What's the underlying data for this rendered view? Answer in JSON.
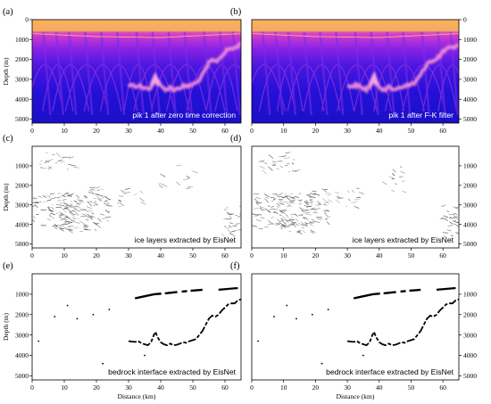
{
  "figure": {
    "panels": [
      {
        "id": "a",
        "letter": "(a)",
        "caption": "pik 1 after zero time correction",
        "type": "radargram",
        "caption_color": "#ffffff"
      },
      {
        "id": "b",
        "letter": "(b)",
        "caption": "pik 1 after F-K filter",
        "type": "radargram",
        "caption_color": "#ffffff"
      },
      {
        "id": "c",
        "letter": "(c)",
        "caption": "ice layers extracted by EisNet",
        "type": "layers",
        "caption_color": "#000000"
      },
      {
        "id": "d",
        "letter": "(d)",
        "caption": "ice layers extracted by EisNet",
        "type": "layers",
        "caption_color": "#000000"
      },
      {
        "id": "e",
        "letter": "(e)",
        "caption": "bedrock interface extracted by EisNet",
        "type": "bedrock",
        "caption_color": "#000000"
      },
      {
        "id": "f",
        "letter": "(f)",
        "caption": "bedrock interface extracted by EisNet",
        "type": "bedrock",
        "caption_color": "#000000"
      }
    ],
    "x_axis": {
      "label": "Distance (km)",
      "ticks": [
        "0",
        "10",
        "20",
        "30",
        "40",
        "50",
        "60"
      ],
      "tick_values": [
        0,
        10,
        20,
        30,
        40,
        50,
        60
      ],
      "range": [
        0,
        65
      ]
    },
    "y_axis": {
      "label": "Depth (m)",
      "range": [
        0,
        5200
      ],
      "ticks_ab": [
        "0",
        "1000",
        "2000",
        "3000",
        "4000",
        "5000"
      ],
      "tick_values_ab": [
        0,
        1000,
        2000,
        3000,
        4000,
        5000
      ],
      "ticks_cdef": [
        "1000",
        "2000",
        "3000",
        "4000",
        "5000"
      ],
      "tick_values_cdef": [
        1000,
        2000,
        3000,
        4000,
        5000
      ]
    },
    "bedrock_trace": {
      "x_km": [
        30,
        31,
        32,
        33,
        34,
        35,
        36,
        37,
        37.5,
        38,
        38.5,
        39,
        40,
        41,
        42,
        43,
        44,
        45,
        46,
        47,
        48,
        49,
        50,
        51,
        52,
        53,
        54,
        55,
        56,
        57,
        58,
        59,
        60,
        61,
        62,
        63,
        64,
        65
      ],
      "depth_m": [
        3300,
        3320,
        3340,
        3300,
        3400,
        3450,
        3500,
        3350,
        3150,
        2950,
        2900,
        3100,
        3350,
        3450,
        3500,
        3420,
        3500,
        3480,
        3420,
        3350,
        3380,
        3300,
        3250,
        3200,
        3000,
        2800,
        2500,
        2200,
        2050,
        2100,
        2000,
        1800,
        1650,
        1500,
        1450,
        1450,
        1300,
        1250
      ]
    },
    "upper_reflector": {
      "x_km": [
        32,
        35,
        38,
        42,
        46,
        50,
        53
      ],
      "depth_m": [
        1200,
        1100,
        1000,
        950,
        880,
        820,
        780
      ]
    },
    "colors": {
      "deep_background": "#1a10d8",
      "surface_band": "#f6b060",
      "bed_reflector": "#e57ad0",
      "text_black": "#000000"
    }
  }
}
